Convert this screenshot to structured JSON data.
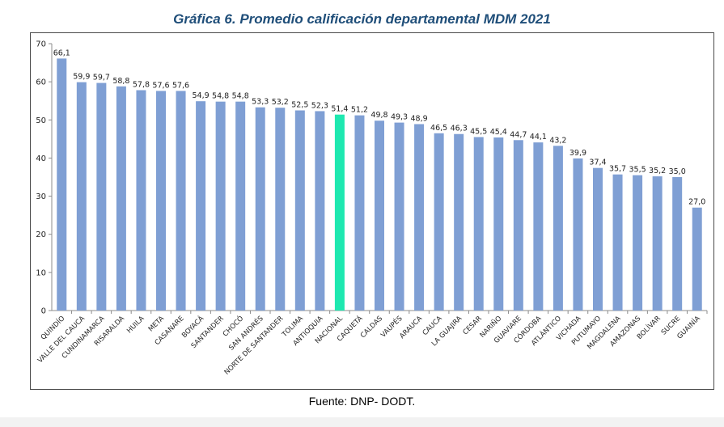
{
  "chart_data": {
    "type": "bar",
    "title": "Gráfica 6. Promedio calificación departamental MDM 2021",
    "xlabel": "",
    "ylabel": "",
    "ylim": [
      0,
      70
    ],
    "yticks": [
      0,
      10,
      20,
      30,
      40,
      50,
      60,
      70
    ],
    "grid": false,
    "legend": "none",
    "categories": [
      "QUINDÍO",
      "VALLE DEL CAUCA",
      "CUNDINAMARCA",
      "RISARALDA",
      "HUILA",
      "META",
      "CASANARE",
      "BOYACÁ",
      "SANTANDER",
      "CHOCÓ",
      "SAN ANDRÉS",
      "NORTE DE SANTANDER",
      "TOLIMA",
      "ANTIOQUIA",
      "NACIONAL",
      "CAQUETÁ",
      "CALDAS",
      "VAUPÉS",
      "ARAUCA",
      "CAUCA",
      "LA GUAJIRA",
      "CESAR",
      "NARIÑO",
      "GUAVIARE",
      "CÓRDOBA",
      "ATLÁNTICO",
      "VICHADA",
      "PUTUMAYO",
      "MAGDALENA",
      "AMAZONAS",
      "BOLÍVAR",
      "SUCRE",
      "GUAINÍA"
    ],
    "values": [
      66.1,
      59.9,
      59.7,
      58.8,
      57.8,
      57.6,
      57.6,
      54.9,
      54.8,
      54.8,
      53.3,
      53.2,
      52.5,
      52.3,
      51.4,
      51.2,
      49.8,
      49.3,
      48.9,
      46.5,
      46.3,
      45.5,
      45.4,
      44.7,
      44.1,
      43.2,
      39.9,
      37.4,
      35.7,
      35.5,
      35.2,
      35.0,
      27.0
    ],
    "value_labels": [
      "66,1",
      "59,9",
      "59,7",
      "58,8",
      "57,8",
      "57,6",
      "57,6",
      "54,9",
      "54,8",
      "54,8",
      "53,3",
      "53,2",
      "52,5",
      "52,3",
      "51,4",
      "51,2",
      "49,8",
      "49,3",
      "48,9",
      "46,5",
      "46,3",
      "45,5",
      "45,4",
      "44,7",
      "44,1",
      "43,2",
      "39,9",
      "37,4",
      "35,7",
      "35,5",
      "35,2",
      "35,0",
      "27,0"
    ],
    "highlight_category": "NACIONAL",
    "colors": {
      "bar": "#7f9fd4",
      "highlight": "#1ee8b0",
      "axis": "#8c8c8c"
    }
  },
  "source_note": "Fuente: DNP- DODT."
}
